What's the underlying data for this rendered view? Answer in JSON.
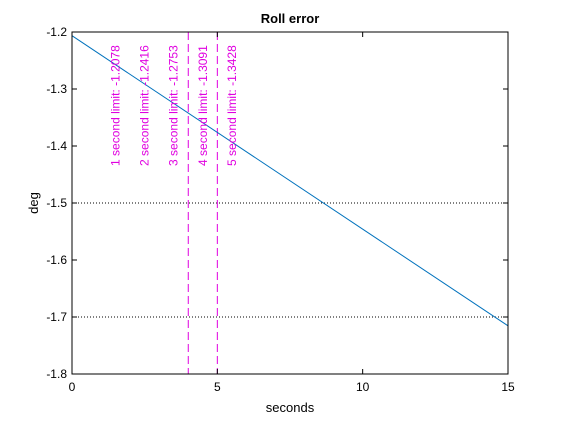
{
  "chart_data": {
    "type": "line",
    "title": "Roll error",
    "xlabel": "seconds",
    "ylabel": "deg",
    "xlim": [
      0,
      15
    ],
    "ylim": [
      -1.8,
      -1.2
    ],
    "xticks": [
      0,
      5,
      10,
      15
    ],
    "xtick_labels": [
      "0",
      "5",
      "10",
      "15"
    ],
    "yticks": [
      -1.2,
      -1.3,
      -1.4,
      -1.5,
      -1.6,
      -1.7,
      -1.8
    ],
    "ytick_labels": [
      "-1.2",
      "-1.3",
      "-1.4",
      "-1.5",
      "-1.6",
      "-1.7",
      "-1.8"
    ],
    "grid": false,
    "series": [
      {
        "name": "roll error",
        "color": "#0072bd",
        "x": [
          0,
          15
        ],
        "y": [
          -1.2065,
          -1.7155
        ]
      }
    ],
    "hlines": [
      {
        "y": -1.5,
        "style": "dotted",
        "color": "#000000"
      },
      {
        "y": -1.7,
        "style": "dotted",
        "color": "#000000"
      }
    ],
    "vlines": [
      {
        "x": 4,
        "style": "dashed",
        "color": "#e000e0"
      },
      {
        "x": 5,
        "style": "dashed",
        "color": "#e000e0"
      }
    ],
    "annotations": [
      {
        "text": "1 second limit: -1.2078",
        "x": 1.5,
        "y_bottom": -1.435,
        "color": "#e000e0"
      },
      {
        "text": "2 second limit: -1.2416",
        "x": 2.5,
        "y_bottom": -1.435,
        "color": "#e000e0"
      },
      {
        "text": "3 second limit: -1.2753",
        "x": 3.5,
        "y_bottom": -1.435,
        "color": "#e000e0"
      },
      {
        "text": "4 second limit: -1.3091",
        "x": 4.5,
        "y_bottom": -1.435,
        "color": "#e000e0"
      },
      {
        "text": "5 second limit: -1.3428",
        "x": 5.5,
        "y_bottom": -1.435,
        "color": "#e000e0"
      }
    ]
  }
}
